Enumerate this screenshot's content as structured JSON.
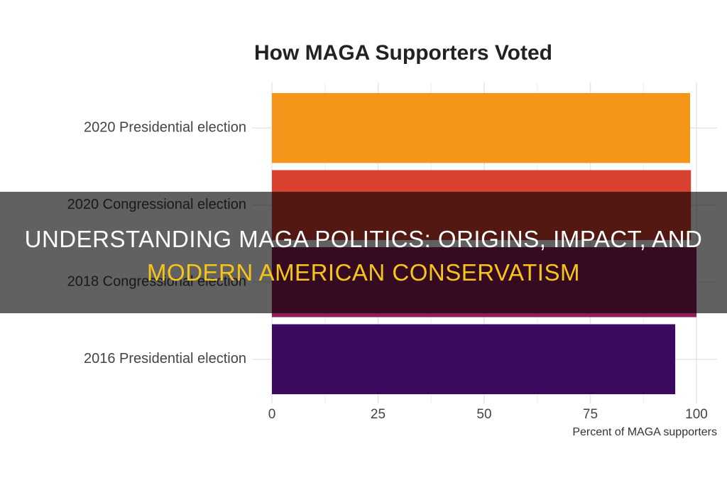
{
  "chart_data": {
    "type": "bar",
    "orientation": "horizontal",
    "title": "How MAGA Supporters Voted",
    "categories": [
      "2020 Presidential election",
      "2020 Congressional election",
      "2018 Congressional election",
      "2016 Presidential election"
    ],
    "values": [
      98.5,
      98.7,
      100,
      95
    ],
    "colors": [
      "#f5951a",
      "#d8402f",
      "#8f1d5a",
      "#3b0a5e"
    ],
    "x_label": "Percent of MAGA supporters",
    "xlim": [
      0,
      100
    ],
    "xticks": [
      0,
      25,
      50,
      75,
      100
    ],
    "minor_xticks": [
      12.5,
      37.5,
      62.5,
      87.5
    ],
    "grid": true
  },
  "banner": {
    "line1": "UNDERSTANDING MAGA POLITICS: ORIGINS, IMPACT, AND",
    "line2": "MODERN AMERICAN CONSERVATISM"
  }
}
